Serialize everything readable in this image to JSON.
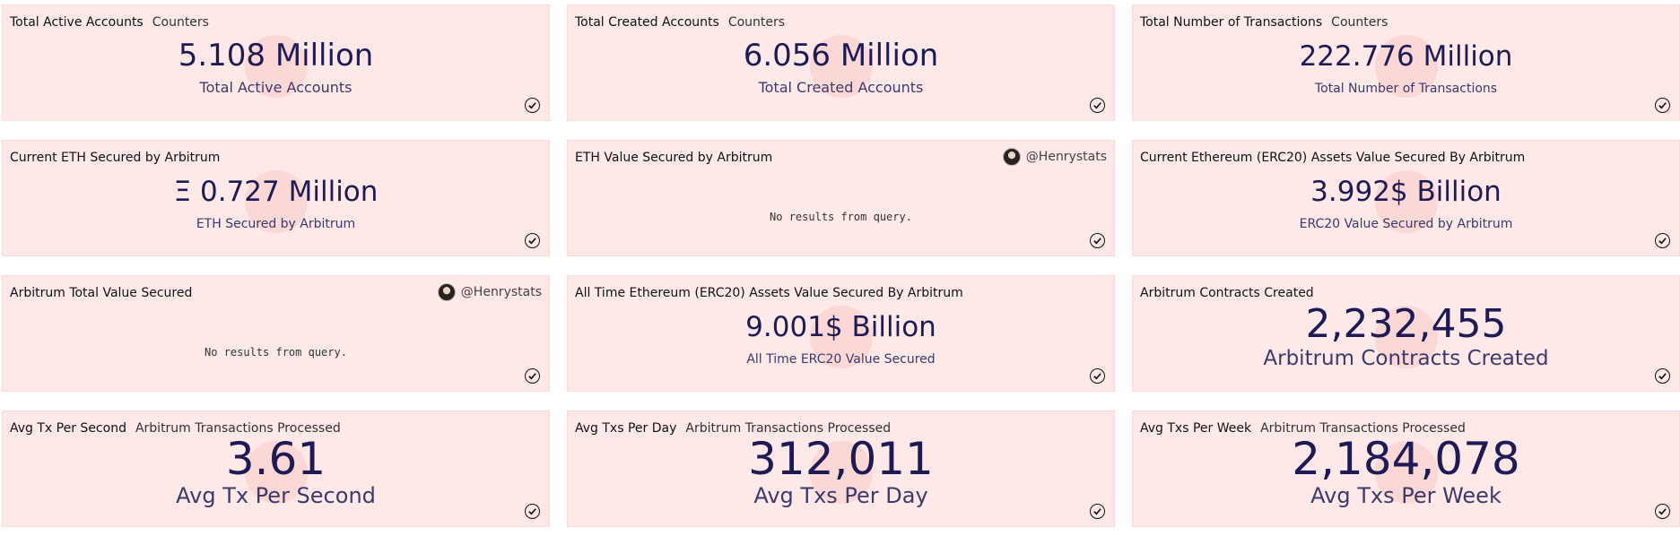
{
  "cards": [
    {
      "title": "Total Active Accounts",
      "subtitle": "Counters",
      "value": "5.108 Million",
      "label": "Total Active Accounts"
    },
    {
      "title": "Total Created Accounts",
      "subtitle": "Counters",
      "value": "6.056 Million",
      "label": "Total Created Accounts"
    },
    {
      "title": "Total Number of Transactions",
      "subtitle": "Counters",
      "value": "222.776 Million",
      "label": "Total Number of Transactions"
    },
    {
      "title": "Current ETH Secured by Arbitrum",
      "value": "Ξ 0.727 Million",
      "label": "ETH Secured by Arbitrum"
    },
    {
      "title": "ETH Value Secured by Arbitrum",
      "author": "@Henrystats",
      "message": "No results from query."
    },
    {
      "title": "Current Ethereum (ERC20) Assets Value Secured By Arbitrum",
      "value": "3.992$ Billion",
      "label": "ERC20 Value Secured by Arbitrum"
    },
    {
      "title": "Arbitrum Total Value Secured",
      "author": "@Henrystats",
      "message": "No results from query."
    },
    {
      "title": "All Time Ethereum (ERC20) Assets Value Secured By Arbitrum",
      "value": "9.001$ Billion",
      "label": "All Time ERC20 Value Secured"
    },
    {
      "title": "Arbitrum Contracts Created",
      "value": "2,232,455",
      "label": "Arbitrum Contracts Created"
    },
    {
      "title": "Avg Tx Per Second",
      "subtitle": "Arbitrum Transactions Processed",
      "value": "3.61",
      "label": "Avg Tx Per Second"
    },
    {
      "title": "Avg Txs Per Day",
      "subtitle": "Arbitrum Transactions Processed",
      "value": "312,011",
      "label": "Avg Txs Per Day"
    },
    {
      "title": "Avg Txs Per Week",
      "subtitle": "Arbitrum Transactions Processed",
      "value": "2,184,078",
      "label": "Avg Txs Per Week"
    }
  ],
  "icons": {
    "status": "check-circle-icon",
    "avatar": "user-avatar-icon"
  },
  "colors": {
    "card_bg": "#ffe9e8",
    "value_text": "#1d1a55"
  }
}
